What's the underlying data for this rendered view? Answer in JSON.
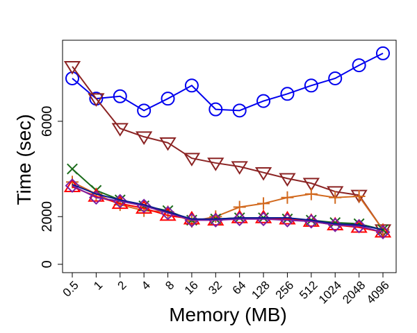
{
  "chart_data": {
    "type": "line",
    "title": "",
    "xlabel": "Memory (MB)",
    "ylabel": "Time (sec)",
    "categories": [
      "0.5",
      "1",
      "2",
      "4",
      "8",
      "16",
      "32",
      "64",
      "128",
      "256",
      "512",
      "1024",
      "2048",
      "4096"
    ],
    "yticks": [
      0,
      2000,
      6000
    ],
    "ylim": [
      -350,
      9400
    ],
    "grid": false,
    "series": [
      {
        "name": "circle-series",
        "marker": "circle",
        "color": "#0000ee",
        "values": [
          7800,
          6950,
          7050,
          6450,
          6950,
          7500,
          6500,
          6450,
          6850,
          7150,
          7500,
          7800,
          8350,
          8850
        ]
      },
      {
        "name": "triangle-down-series",
        "marker": "triangle-down",
        "color": "#8b2323",
        "values": [
          8300,
          6950,
          5700,
          5350,
          5100,
          4450,
          4250,
          4100,
          3850,
          3600,
          3400,
          3050,
          2900,
          1450
        ]
      },
      {
        "name": "plus-series",
        "marker": "plus",
        "color": "#d2691e",
        "values": [
          3450,
          2950,
          2500,
          2250,
          2200,
          1800,
          2000,
          2400,
          2550,
          2800,
          2950,
          2800,
          2850,
          1450
        ]
      },
      {
        "name": "cross-series",
        "marker": "cross",
        "color": "#1a6b1a",
        "values": [
          4000,
          3100,
          2700,
          2450,
          2250,
          1850,
          1900,
          1950,
          1950,
          1900,
          1850,
          1750,
          1700,
          1450
        ]
      },
      {
        "name": "triangle-up-series",
        "marker": "triangle-up",
        "color": "#ff0000",
        "values": [
          3250,
          2850,
          2550,
          2350,
          2050,
          1900,
          1850,
          1950,
          1950,
          1900,
          1800,
          1650,
          1550,
          1350
        ]
      },
      {
        "name": "diamond-series",
        "marker": "diamond",
        "color": "#7b1fa2",
        "values": [
          3300,
          2800,
          2650,
          2450,
          2150,
          1850,
          1850,
          1900,
          1900,
          1850,
          1800,
          1650,
          1600,
          1350
        ]
      },
      {
        "name": "blue-line-series",
        "marker": "none",
        "color": "#0a1a8c",
        "values": [
          3350,
          2950,
          2700,
          2500,
          2200,
          1900,
          1900,
          1950,
          1950,
          1950,
          1850,
          1700,
          1650,
          1450
        ]
      }
    ]
  }
}
